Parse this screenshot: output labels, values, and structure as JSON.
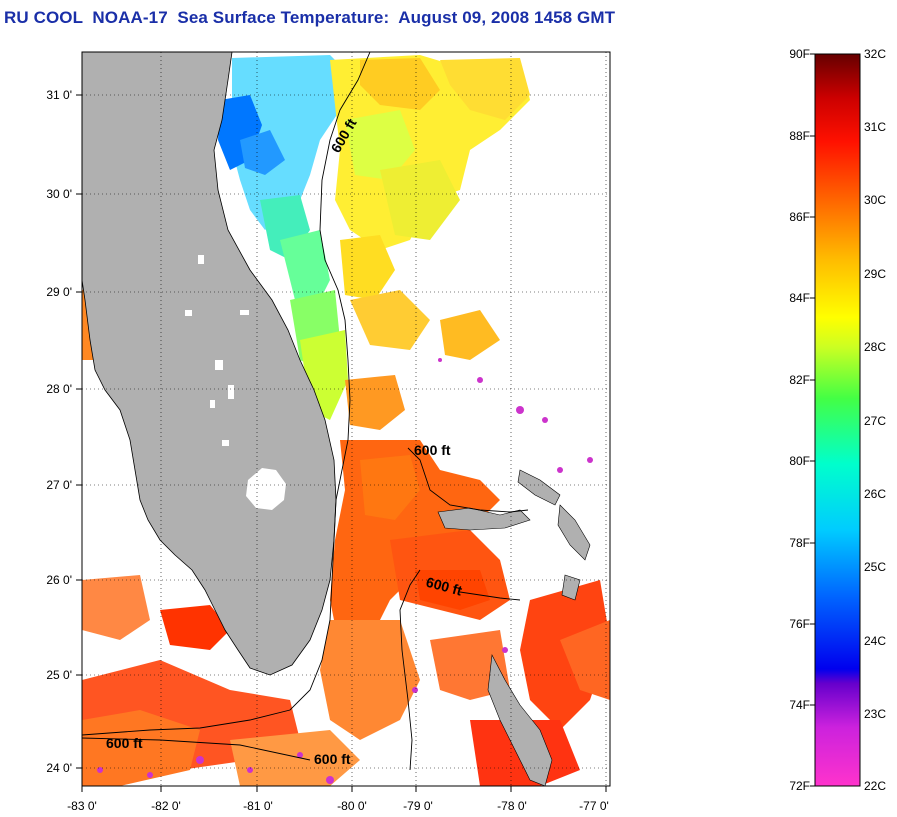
{
  "header": {
    "title": "RU COOL  NOAA-17  Sea Surface Temperature:  August 09, 2008 1458 GMT"
  },
  "map": {
    "lon_range": [
      -83,
      -76.8
    ],
    "lat_range": [
      23.8,
      31.45
    ],
    "lon_ticks": [
      "-83 0'",
      "-82 0'",
      "-81 0'",
      "-80 0'",
      "-79 0'",
      "-78 0'",
      "-77 0'"
    ],
    "lat_ticks": [
      "24 0'",
      "25 0'",
      "26 0'",
      "27 0'",
      "28 0'",
      "29 0'",
      "30 0'",
      "31 0'"
    ],
    "grid": "dotted",
    "land_color": "#b0b0b0",
    "isobath_labels": [
      "600 ft",
      "600 ft",
      "600 ft",
      "600 ft",
      "600 ft"
    ]
  },
  "colorbar": {
    "fahrenheit_labels": [
      "90F",
      "88F",
      "86F",
      "84F",
      "82F",
      "80F",
      "78F",
      "76F",
      "74F",
      "72F"
    ],
    "celsius_labels": [
      "32C",
      "31C",
      "30C",
      "29C",
      "28C",
      "27C",
      "26C",
      "25C",
      "24C",
      "23C",
      "22C"
    ],
    "colors": [
      "#ff33cc",
      "#9900cc",
      "#0000ff",
      "#0099ff",
      "#00ffff",
      "#33ff66",
      "#ffff00",
      "#ffaa00",
      "#ff5500",
      "#ff0000",
      "#990000",
      "#660000"
    ]
  }
}
